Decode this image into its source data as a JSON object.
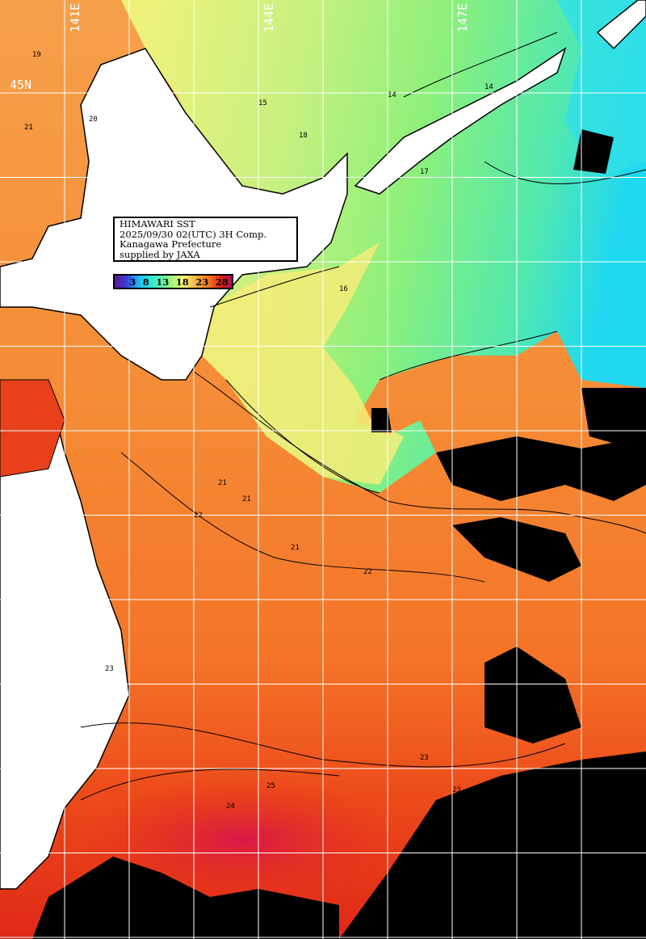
{
  "map": {
    "title": "HIMAWARI SST",
    "datetime": "2025/09/30 02(UTC) 3H Comp.",
    "region": "Kanagawa Prefecture",
    "credit": "supplied by JAXA",
    "longitude_labels": [
      "141E",
      "144E",
      "147E"
    ],
    "latitude_labels": [
      "45N"
    ],
    "colorbar": {
      "ticks": [
        "3",
        "8",
        "13",
        "18",
        "23",
        "28"
      ],
      "colors": [
        "#5a1a8c",
        "#1ec8f5",
        "#3ef0c8",
        "#9cf57a",
        "#f5f57a",
        "#f5b040",
        "#f06a1e",
        "#e01818",
        "#b0105a"
      ]
    },
    "contour_labels": [
      "19",
      "20",
      "21",
      "15",
      "14",
      "18",
      "17",
      "16",
      "14",
      "21",
      "22",
      "21",
      "23",
      "21",
      "22",
      "23",
      "24",
      "25",
      "23"
    ],
    "colors": {
      "land": "#ffffff",
      "cloud_no_data": "#000000",
      "grid": "#ffffff",
      "warm_sea": "#f47a2a",
      "cool_sea": "#8ef07a",
      "cold_sea": "#20d8f0"
    }
  }
}
